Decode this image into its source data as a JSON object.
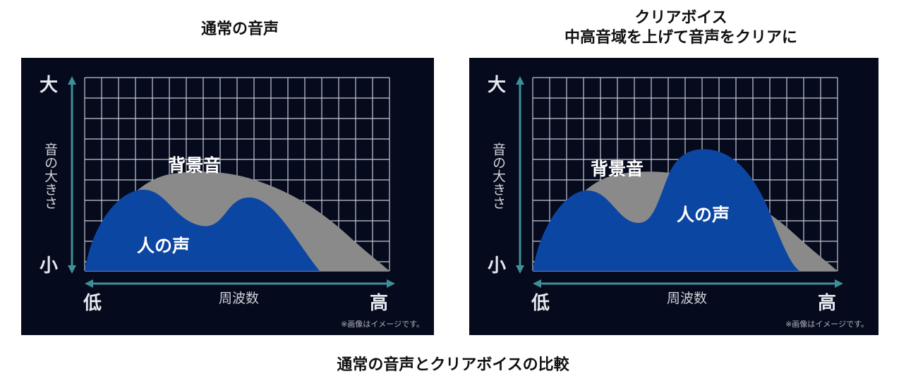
{
  "caption": "通常の音声とクリアボイスの比較",
  "panels": [
    {
      "title_lines": [
        "通常の音声"
      ],
      "y_top": "大",
      "y_bottom": "小",
      "y_axis": "音の大きさ",
      "x_left": "低",
      "x_right": "高",
      "x_axis": "周波数",
      "background_label": "背景音",
      "voice_label": "人の声",
      "note": "※画像はイメージです。",
      "colors": {
        "background": "#050a1c",
        "grid": "#c8cbd3",
        "bg_sound": "#8a8a8a",
        "voice": "#0c46a3",
        "arrow": "#3f8f9a"
      }
    },
    {
      "title_lines": [
        "クリアボイス",
        "中高音域を上げて音声をクリアに"
      ],
      "y_top": "大",
      "y_bottom": "小",
      "y_axis": "音の大きさ",
      "x_left": "低",
      "x_right": "高",
      "x_axis": "周波数",
      "background_label": "背景音",
      "voice_label": "人の声",
      "note": "※画像はイメージです。",
      "colors": {
        "background": "#050a1c",
        "grid": "#c8cbd3",
        "bg_sound": "#8a8a8a",
        "voice": "#0c46a3",
        "arrow": "#3f8f9a"
      }
    }
  ]
}
